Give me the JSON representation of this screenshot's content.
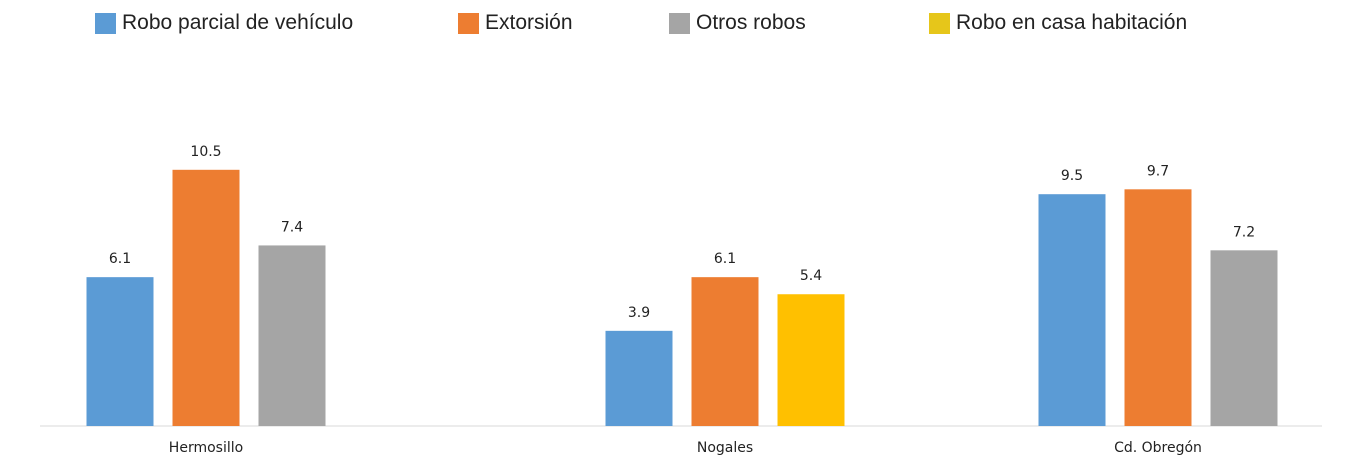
{
  "chart_data": {
    "type": "bar",
    "categories": [
      "Hermosillo",
      "Nogales",
      "Cd. Obregón"
    ],
    "series": [
      {
        "name": "Robo parcial de vehículo",
        "color": "#5b9bd5",
        "values": [
          6.1,
          3.9,
          9.5
        ]
      },
      {
        "name": "Extorsión",
        "color": "#ed7d31",
        "values": [
          10.5,
          6.1,
          9.7
        ]
      },
      {
        "name": "Otros robos",
        "color": "#a5a5a5",
        "values": [
          7.4,
          null,
          7.2
        ]
      },
      {
        "name": "Robo en casa habitación",
        "color": "#ffc000",
        "values": [
          null,
          5.4,
          null
        ]
      }
    ],
    "legend_position": "top",
    "grid": false,
    "ylim": [
      0,
      12
    ],
    "xlabel": "",
    "ylabel": ""
  }
}
